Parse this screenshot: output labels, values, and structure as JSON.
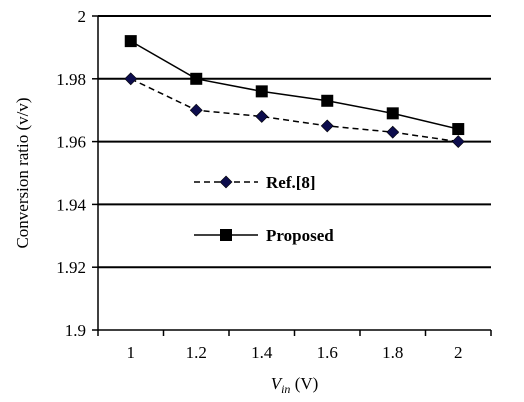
{
  "chart_data": {
    "type": "line",
    "x": [
      1,
      1.2,
      1.4,
      1.6,
      1.8,
      2
    ],
    "x_tick_labels": [
      "1",
      "1.2",
      "1.4",
      "1.6",
      "1.8",
      "2"
    ],
    "y_tick_labels": [
      "1.9",
      "1.92",
      "1.94",
      "1.96",
      "1.98",
      "2"
    ],
    "xlim": [
      0.9,
      2.1
    ],
    "ylim": [
      1.9,
      2.0
    ],
    "y_ticks": [
      1.9,
      1.92,
      1.94,
      1.96,
      1.98,
      2.0
    ],
    "grid": "horizontal",
    "xlabel": {
      "main": "V",
      "sub": "in",
      "unit": " (V)"
    },
    "ylabel": "Conversion ratio (v/v)",
    "legend_position": "center-left",
    "series": [
      {
        "name": "Ref.[8]",
        "values": [
          1.98,
          1.97,
          1.968,
          1.965,
          1.963,
          1.96
        ],
        "marker": "diamond",
        "line_style": "dashed",
        "color": "#000000",
        "marker_fill": "#0d0d4d"
      },
      {
        "name": "Proposed",
        "values": [
          1.992,
          1.98,
          1.976,
          1.973,
          1.969,
          1.964
        ],
        "marker": "square",
        "line_style": "solid",
        "color": "#000000",
        "marker_fill": "#000000"
      }
    ]
  }
}
